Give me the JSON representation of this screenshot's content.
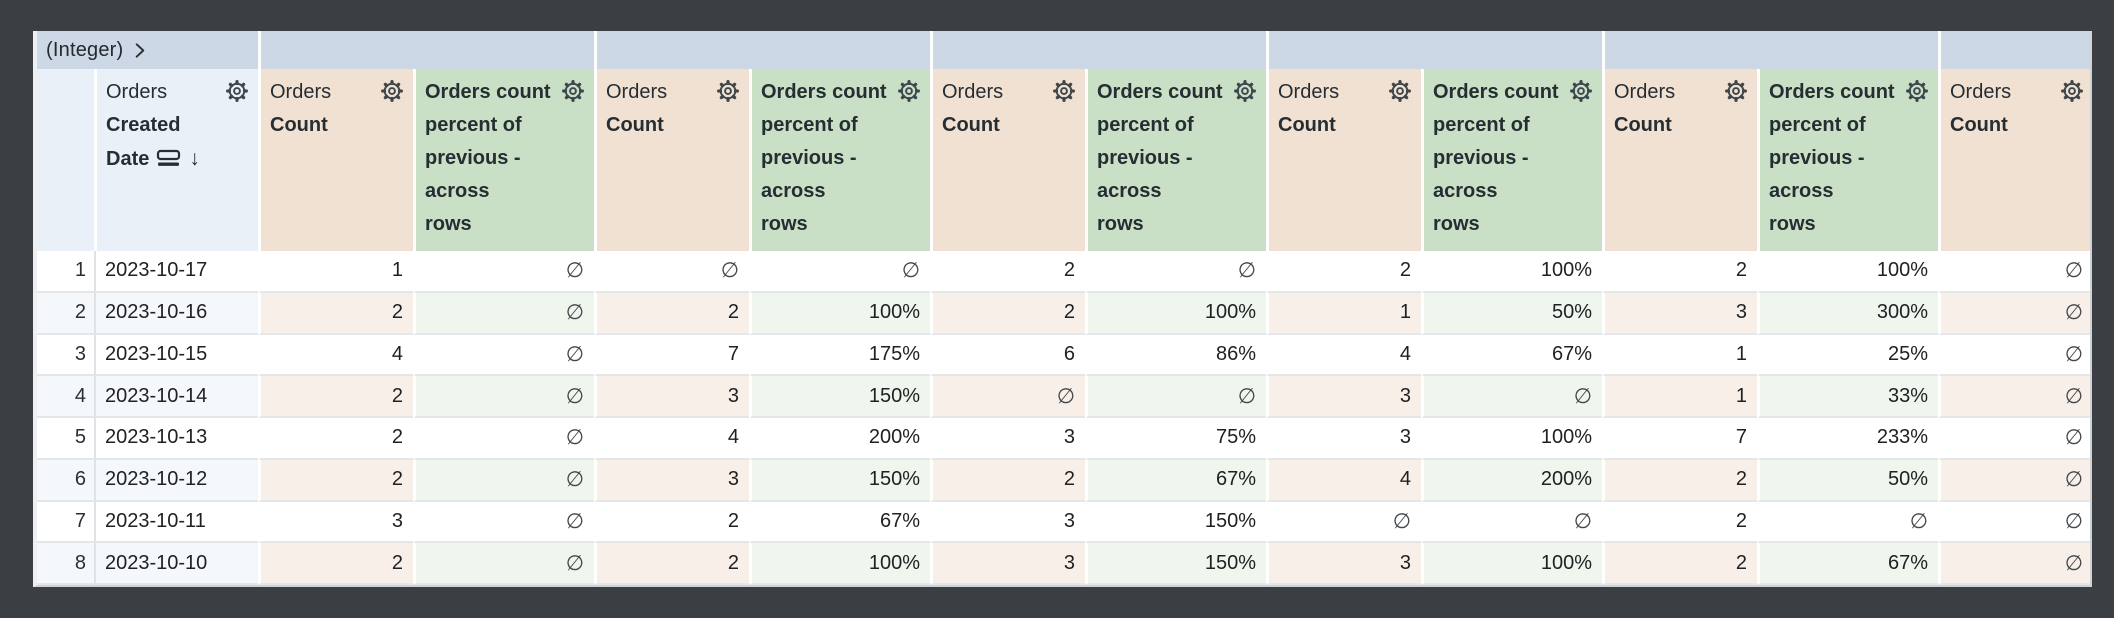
{
  "window": {
    "background": "#3b3e42"
  },
  "pivot_band": {
    "label": "(Integer)",
    "chevron_icon": "chevron-right",
    "empty_group_count": 6
  },
  "headers": {
    "dimension": {
      "view": "Orders",
      "field": "Created\nDate",
      "sort_indicator": "↓"
    },
    "count": {
      "view": "Orders",
      "field": "Count"
    },
    "percent": {
      "label": "Orders count\npercent of\nprevious -\nacross\nrows"
    }
  },
  "null_symbol": "∅",
  "table": {
    "measure_group_count": 6,
    "rows": [
      {
        "num": "1",
        "date": "2023-10-17",
        "cells": [
          "1",
          "∅",
          "∅",
          "∅",
          "2",
          "∅",
          "2",
          "100%",
          "2",
          "100%",
          "∅"
        ]
      },
      {
        "num": "2",
        "date": "2023-10-16",
        "cells": [
          "2",
          "∅",
          "2",
          "100%",
          "2",
          "100%",
          "1",
          "50%",
          "3",
          "300%",
          "∅"
        ]
      },
      {
        "num": "3",
        "date": "2023-10-15",
        "cells": [
          "4",
          "∅",
          "7",
          "175%",
          "6",
          "86%",
          "4",
          "67%",
          "1",
          "25%",
          "∅"
        ]
      },
      {
        "num": "4",
        "date": "2023-10-14",
        "cells": [
          "2",
          "∅",
          "3",
          "150%",
          "∅",
          "∅",
          "3",
          "∅",
          "1",
          "33%",
          "∅"
        ]
      },
      {
        "num": "5",
        "date": "2023-10-13",
        "cells": [
          "2",
          "∅",
          "4",
          "200%",
          "3",
          "75%",
          "3",
          "100%",
          "7",
          "233%",
          "∅"
        ]
      },
      {
        "num": "6",
        "date": "2023-10-12",
        "cells": [
          "2",
          "∅",
          "3",
          "150%",
          "2",
          "67%",
          "4",
          "200%",
          "2",
          "50%",
          "∅"
        ]
      },
      {
        "num": "7",
        "date": "2023-10-11",
        "cells": [
          "3",
          "∅",
          "2",
          "67%",
          "3",
          "150%",
          "∅",
          "∅",
          "2",
          "∅",
          "∅"
        ]
      },
      {
        "num": "8",
        "date": "2023-10-10",
        "cells": [
          "2",
          "∅",
          "2",
          "100%",
          "3",
          "150%",
          "3",
          "100%",
          "2",
          "67%",
          "∅"
        ]
      }
    ]
  },
  "colors": {
    "canvas": "#3b3e42",
    "pivot_band": "#ccd8e6",
    "dimension_header": "#e9f0f8",
    "count_header": "#f0e1d2",
    "percent_header": "#cae0c6",
    "count_row_tint": "#f8f0e8",
    "percent_row_tint": "#eff6ed",
    "dimension_row_tint": "#f4f8fb",
    "header_text": "#262d33",
    "cell_text": "#202124"
  }
}
